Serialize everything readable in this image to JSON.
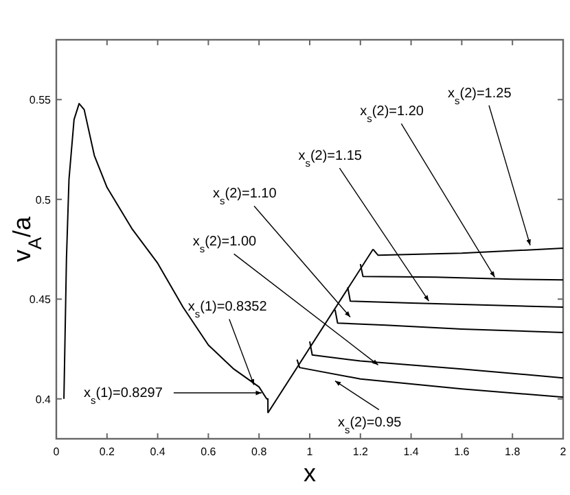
{
  "chart_data": {
    "type": "line",
    "xlabel": "x",
    "ylabel": "v$_{A}$/a",
    "xlim": [
      0,
      2
    ],
    "ylim": [
      0.38,
      0.58
    ],
    "xticks": [
      0,
      0.2,
      0.4,
      0.6,
      0.8,
      1,
      1.2,
      1.4,
      1.6,
      1.8,
      2
    ],
    "yticks": [
      0.4,
      0.45,
      0.5,
      0.55
    ],
    "grid": false,
    "marker": "none",
    "line_style": "solid",
    "series": [
      {
        "color": "#000000",
        "x": [
          0.03,
          0.04,
          0.05,
          0.07,
          0.09,
          0.11,
          0.15,
          0.2,
          0.3,
          0.4,
          0.5,
          0.6,
          0.7,
          0.8,
          0.83,
          0.835,
          0.835
        ],
        "values": [
          0.4,
          0.47,
          0.51,
          0.54,
          0.548,
          0.545,
          0.522,
          0.506,
          0.485,
          0.468,
          0.446,
          0.427,
          0.415,
          0.406,
          0.4,
          0.4,
          0.393
        ]
      },
      {
        "color": "#000000",
        "x": [
          0.835,
          1.25
        ],
        "values": [
          0.393,
          0.475
        ]
      },
      {
        "color": "#000000",
        "x": [
          0.95,
          0.96,
          1.2,
          1.6,
          2
        ],
        "values": [
          0.4197,
          0.4157,
          0.41,
          0.405,
          0.4009
        ]
      },
      {
        "color": "#000000",
        "x": [
          1,
          1.01,
          1.2,
          1.6,
          2
        ],
        "values": [
          0.4288,
          0.422,
          0.419,
          0.415,
          0.4105
        ]
      },
      {
        "color": "#000000",
        "x": [
          1.1,
          1.11,
          1.3,
          1.6,
          2
        ],
        "values": [
          0.4447,
          0.438,
          0.437,
          0.435,
          0.4333
        ]
      },
      {
        "color": "#000000",
        "x": [
          1.15,
          1.16,
          1.4,
          1.7,
          2
        ],
        "values": [
          0.456,
          0.449,
          0.448,
          0.447,
          0.446
        ]
      },
      {
        "color": "#000000",
        "x": [
          1.2,
          1.21,
          1.5,
          1.8,
          2
        ],
        "values": [
          0.4676,
          0.4614,
          0.461,
          0.46,
          0.4596
        ]
      },
      {
        "color": "#000000",
        "x": [
          1.25,
          1.27,
          1.6,
          2
        ],
        "values": [
          0.475,
          0.472,
          0.473,
          0.4755
        ]
      }
    ],
    "annotations": [
      {
        "text": "x$_{s}$(2)=1.25",
        "x": 1.87,
        "y": 0.477
      },
      {
        "text": "x$_{s}$(2)=1.20",
        "x": 1.73,
        "y": 0.461
      },
      {
        "text": "x$_{s}$(2)=1.15",
        "x": 1.47,
        "y": 0.449
      },
      {
        "text": "x$_{s}$(2)=1.10",
        "x": 1.16,
        "y": 0.441
      },
      {
        "text": "x$_{s}$(2)=1.00",
        "x": 1.27,
        "y": 0.417
      },
      {
        "text": "x$_{s}$(2)=0.95",
        "x": 1.1,
        "y": 0.409
      },
      {
        "text": "x$_{s}$(1)=0.8352",
        "x": 0.78,
        "y": 0.407
      },
      {
        "text": "x$_{s}$(1)=0.8297",
        "x": 0.81,
        "y": 0.403
      }
    ]
  }
}
